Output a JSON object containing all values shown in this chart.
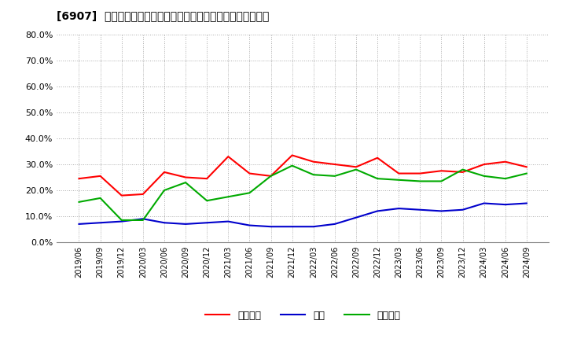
{
  "title": "[6907]  売上債権、在庫、買入債務の総資産に対する比率の推移",
  "xlabels": [
    "2019/06",
    "2019/09",
    "2019/12",
    "2020/03",
    "2020/06",
    "2020/09",
    "2020/12",
    "2021/03",
    "2021/06",
    "2021/09",
    "2021/12",
    "2022/03",
    "2022/06",
    "2022/09",
    "2022/12",
    "2023/03",
    "2023/06",
    "2023/09",
    "2023/12",
    "2024/03",
    "2024/06",
    "2024/09"
  ],
  "urikake": [
    0.245,
    0.255,
    0.18,
    0.185,
    0.27,
    0.25,
    0.245,
    0.33,
    0.265,
    0.255,
    0.335,
    0.31,
    0.3,
    0.29,
    0.325,
    0.265,
    0.265,
    0.275,
    0.27,
    0.3,
    0.31,
    0.29
  ],
  "zaiko": [
    0.07,
    0.075,
    0.08,
    0.09,
    0.075,
    0.07,
    0.075,
    0.08,
    0.065,
    0.06,
    0.06,
    0.06,
    0.07,
    0.095,
    0.12,
    0.13,
    0.125,
    0.12,
    0.125,
    0.15,
    0.145,
    0.15
  ],
  "kaiire": [
    0.155,
    0.17,
    0.085,
    0.085,
    0.2,
    0.23,
    0.16,
    0.175,
    0.19,
    0.255,
    0.295,
    0.26,
    0.255,
    0.28,
    0.245,
    0.24,
    0.235,
    0.235,
    0.28,
    0.255,
    0.245,
    0.265
  ],
  "urikake_color": "#ff0000",
  "zaiko_color": "#0000cc",
  "kaiire_color": "#00aa00",
  "legend_labels": [
    "売上債権",
    "在庫",
    "買入債務"
  ],
  "ylim": [
    0.0,
    0.8
  ],
  "yticks": [
    0.0,
    0.1,
    0.2,
    0.3,
    0.4,
    0.5,
    0.6,
    0.7,
    0.8
  ],
  "bg_color": "#ffffff",
  "grid_color": "#aaaaaa"
}
